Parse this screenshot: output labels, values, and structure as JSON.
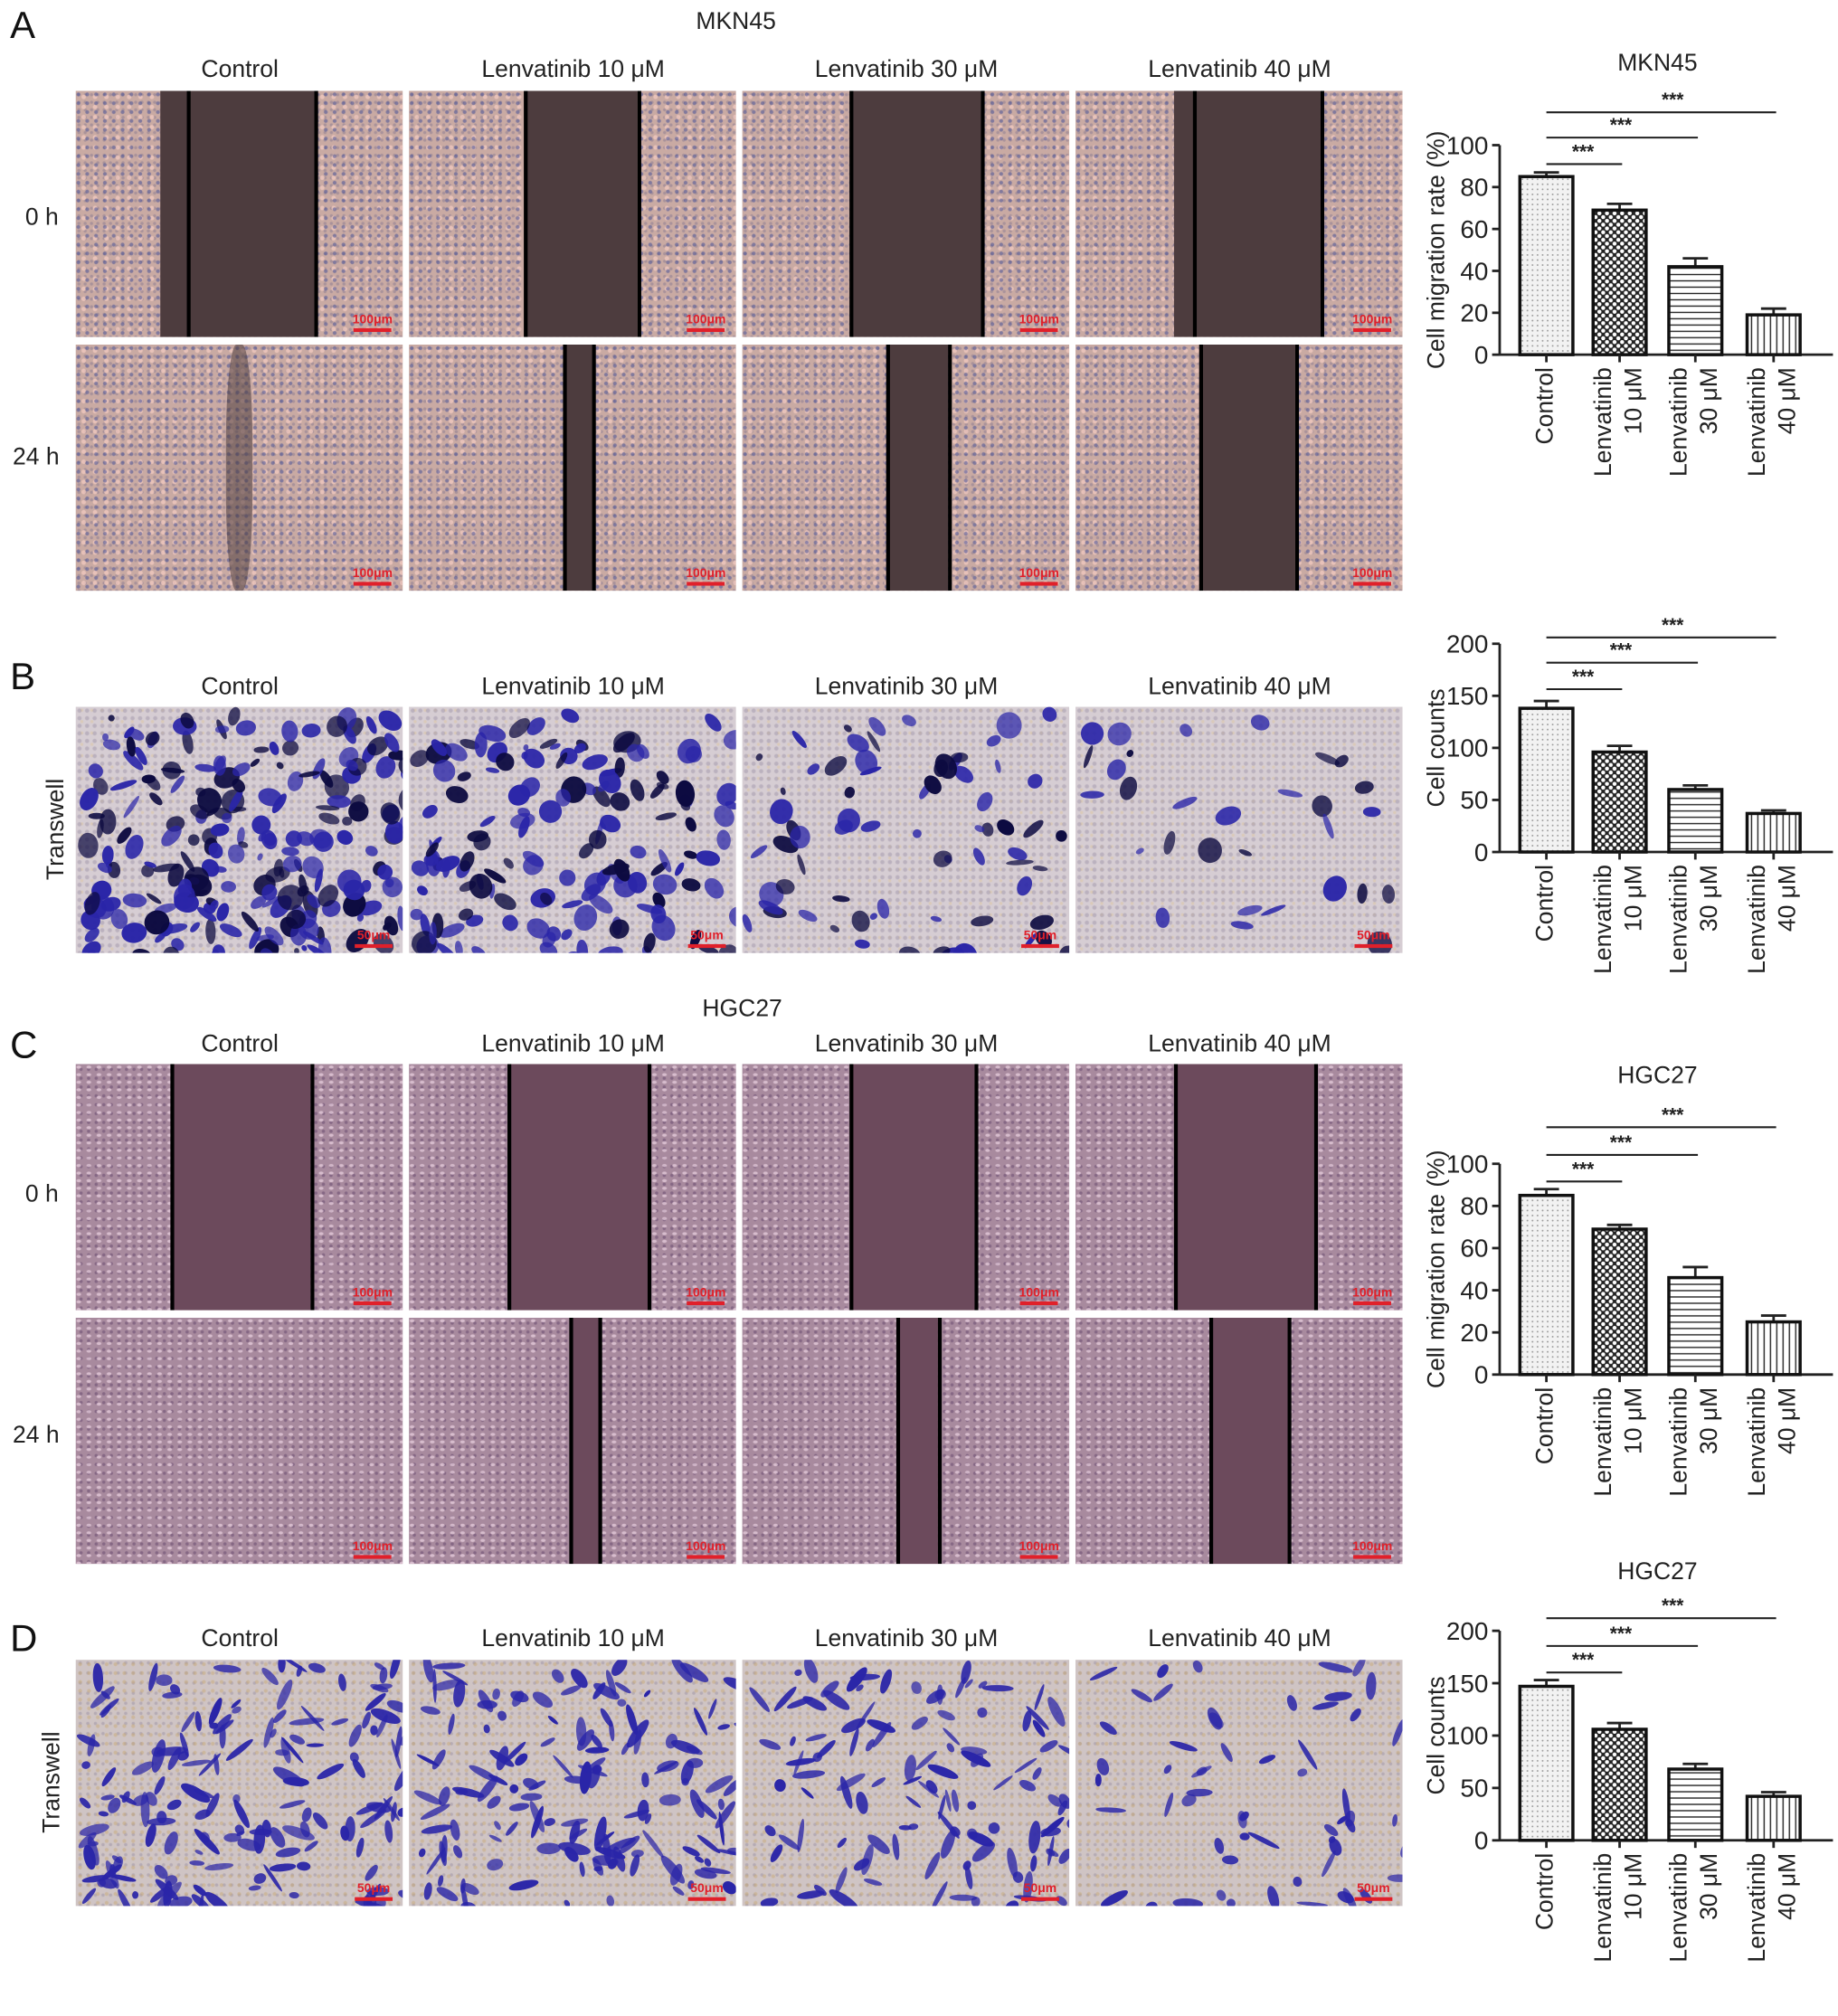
{
  "panel_letters": [
    "A",
    "B",
    "C",
    "D"
  ],
  "cell_lines": {
    "mkn45": "MKN45",
    "hgc27": "HGC27"
  },
  "columns": [
    "Control",
    "Lenvatinib 10 μM",
    "Lenvatinib 30 μM",
    "Lenvatinib 40 μM"
  ],
  "row_labels": {
    "t0": "0 h",
    "t24": "24 h",
    "transwell": "Transwell"
  },
  "scale_bars": {
    "wound": "100μm",
    "transwell": "50μm"
  },
  "colors": {
    "scale_bar": "#e0202a",
    "crystal_violet": "#2a25a8"
  },
  "chart_data": [
    {
      "panel": "A",
      "type": "bar",
      "title": "MKN45",
      "ylabel": "Cell migration rate (%)",
      "ylim": [
        0,
        100
      ],
      "yticks": [
        0,
        20,
        40,
        60,
        80,
        100
      ],
      "categories": [
        [
          "Control"
        ],
        [
          "Lenvatinib",
          "10 μM"
        ],
        [
          "Lenvatinib",
          "30 μM"
        ],
        [
          "Lenvatinib",
          "40 μM"
        ]
      ],
      "values": [
        85,
        69,
        42,
        19
      ],
      "errors": [
        2,
        3,
        4,
        3
      ],
      "patterns": [
        "dots",
        "checker",
        "horizontal",
        "vertical"
      ],
      "significance": [
        {
          "from": 0,
          "to": 1,
          "label": "***"
        },
        {
          "from": 0,
          "to": 2,
          "label": "***"
        },
        {
          "from": 0,
          "to": 3,
          "label": "***"
        }
      ]
    },
    {
      "panel": "B",
      "type": "bar",
      "title": "",
      "ylabel": "Cell counts",
      "ylim": [
        0,
        200
      ],
      "yticks": [
        0,
        50,
        100,
        150,
        200
      ],
      "categories": [
        [
          "Control"
        ],
        [
          "Lenvatinib",
          "10 μM"
        ],
        [
          "Lenvatinib",
          "30 μM"
        ],
        [
          "Lenvatinib",
          "40 μM"
        ]
      ],
      "values": [
        138,
        96,
        60,
        37
      ],
      "errors": [
        7,
        6,
        4,
        3
      ],
      "patterns": [
        "dots",
        "checker",
        "horizontal",
        "vertical"
      ],
      "significance": [
        {
          "from": 0,
          "to": 1,
          "label": "***"
        },
        {
          "from": 0,
          "to": 2,
          "label": "***"
        },
        {
          "from": 0,
          "to": 3,
          "label": "***"
        }
      ]
    },
    {
      "panel": "C",
      "type": "bar",
      "title": "HGC27",
      "ylabel": "Cell migration rate (%)",
      "ylim": [
        0,
        100
      ],
      "yticks": [
        0,
        20,
        40,
        60,
        80,
        100
      ],
      "categories": [
        [
          "Control"
        ],
        [
          "Lenvatinib",
          "10 μM"
        ],
        [
          "Lenvatinib",
          "30 μM"
        ],
        [
          "Lenvatinib",
          "40 μM"
        ]
      ],
      "values": [
        85,
        69,
        46,
        25
      ],
      "errors": [
        3,
        2,
        5,
        3
      ],
      "patterns": [
        "dots",
        "checker",
        "horizontal",
        "vertical"
      ],
      "significance": [
        {
          "from": 0,
          "to": 1,
          "label": "***"
        },
        {
          "from": 0,
          "to": 2,
          "label": "***"
        },
        {
          "from": 0,
          "to": 3,
          "label": "***"
        }
      ]
    },
    {
      "panel": "D",
      "type": "bar",
      "title": "HGC27",
      "ylabel": "Cell counts",
      "ylim": [
        0,
        200
      ],
      "yticks": [
        0,
        50,
        100,
        150,
        200
      ],
      "categories": [
        [
          "Control"
        ],
        [
          "Lenvatinib",
          "10 μM"
        ],
        [
          "Lenvatinib",
          "30 μM"
        ],
        [
          "Lenvatinib",
          "40 μM"
        ]
      ],
      "values": [
        147,
        106,
        68,
        42
      ],
      "errors": [
        6,
        6,
        5,
        4
      ],
      "patterns": [
        "dots",
        "checker",
        "horizontal",
        "vertical"
      ],
      "significance": [
        {
          "from": 0,
          "to": 1,
          "label": "***"
        },
        {
          "from": 0,
          "to": 2,
          "label": "***"
        },
        {
          "from": 0,
          "to": 3,
          "label": "***"
        }
      ]
    }
  ]
}
